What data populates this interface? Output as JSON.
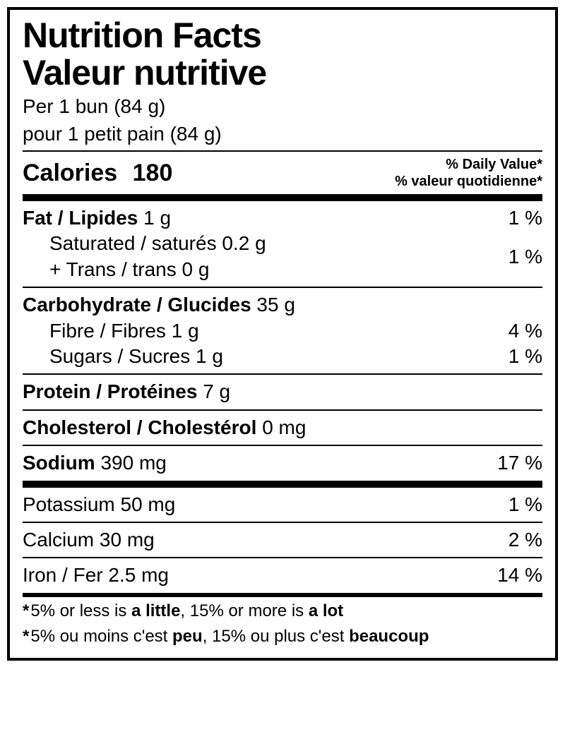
{
  "title_en": "Nutrition Facts",
  "title_fr": "Valeur nutritive",
  "serving_en": "Per 1 bun (84 g)",
  "serving_fr": "pour 1 petit pain (84 g)",
  "calories_label": "Calories",
  "calories_value": "180",
  "dv_en": "% Daily Value*",
  "dv_fr": "% valeur quotidienne*",
  "fat": {
    "label": "Fat / Lipides",
    "amount": "1 g",
    "dv": "1 %"
  },
  "saturated": {
    "label": "Saturated / saturés",
    "amount": "0.2 g"
  },
  "trans": {
    "label": "+ Trans / trans",
    "amount": "0 g"
  },
  "sat_trans_dv": "1 %",
  "carb": {
    "label": "Carbohydrate / Glucides",
    "amount": "35 g"
  },
  "fibre": {
    "label": "Fibre / Fibres",
    "amount": "1 g",
    "dv": "4 %"
  },
  "sugars": {
    "label": "Sugars / Sucres",
    "amount": "1 g",
    "dv": "1 %"
  },
  "protein": {
    "label": "Protein / Protéines",
    "amount": "7 g"
  },
  "cholesterol": {
    "label": "Cholesterol / Cholestérol",
    "amount": "0 mg"
  },
  "sodium": {
    "label": "Sodium",
    "amount": "390 mg",
    "dv": "17 %"
  },
  "potassium": {
    "label": "Potassium",
    "amount": "50 mg",
    "dv": "1 %"
  },
  "calcium": {
    "label": "Calcium",
    "amount": "30 mg",
    "dv": "2 %"
  },
  "iron": {
    "label": "Iron / Fer",
    "amount": "2.5 mg",
    "dv": "14 %"
  },
  "foot_en_pre": "5% or less is ",
  "foot_en_little": "a little",
  "foot_en_mid": ", 15% or more is ",
  "foot_en_lot": "a lot",
  "foot_fr_pre": "5% ou moins c'est  ",
  "foot_fr_little": "peu",
  "foot_fr_mid": ", 15% ou plus c'est  ",
  "foot_fr_lot": "beaucoup"
}
